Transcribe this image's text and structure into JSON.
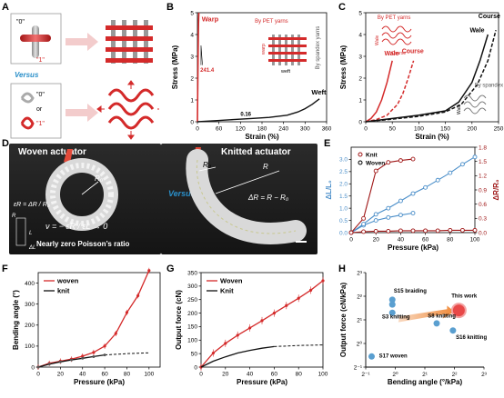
{
  "panels": {
    "A": {
      "label": "A",
      "bit0": "\"0\"",
      "bit1": "\"1\"",
      "versus": "Versus",
      "bit0b": "\"0\"",
      "or": "or",
      "bit1b": "\"1\""
    },
    "B": {
      "label": "B",
      "warp_label": "Warp",
      "weft_label": "Weft",
      "slope_warp": "241.4",
      "slope_weft": "0.16",
      "by_pet": "By PET yarns",
      "by_spandex": "By spandex yarns",
      "inset_warp": "warp",
      "inset_weft": "weft"
    },
    "C": {
      "label": "C",
      "by_pet": "By PET yarns",
      "by_spandex": "By spandex yarns",
      "wale1": "Wale",
      "course1": "Course",
      "wale2": "Wale",
      "course2": "Course",
      "inset_wale": "Wale",
      "inset_course": "Course",
      "inset_wale2": "Wale"
    },
    "D": {
      "label": "D",
      "woven_title": "Woven actuator",
      "knitted_title": "Knitted actuator",
      "versus": "Versus",
      "r0": "R₀",
      "r0b": "R₀",
      "r": "R",
      "delta_r": "ΔR = R − R₀",
      "eps_r": "εR = ΔR / R₀",
      "nu_eq": "ν = − εR / εL → 0",
      "poisson": "Nearly zero Poisson’s ratio",
      "L": "L",
      "dL": "ΔL",
      "R_small": "R"
    },
    "E": {
      "label": "E"
    },
    "F": {
      "label": "F"
    },
    "G": {
      "label": "G"
    },
    "H": {
      "label": "H",
      "s15": "S15 braiding",
      "s3": "S3 knitting",
      "s8": "S8 knitting",
      "this_work": "This work",
      "s16": "S16 knitting",
      "s17": "S17 woven"
    }
  },
  "colors": {
    "red": "#d42a2a",
    "darkred": "#a01818",
    "blue": "#4a8ec9",
    "gray": "#666666",
    "black": "#111111"
  },
  "chart_data": [
    {
      "id": "B",
      "type": "line",
      "xlabel": "Strain (%)",
      "ylabel": "Stress (MPa)",
      "xlim": [
        0,
        360
      ],
      "ylim": [
        0,
        5
      ],
      "xticks": [
        0,
        60,
        120,
        180,
        240,
        300,
        360
      ],
      "yticks": [
        0,
        1,
        2,
        3,
        4,
        5
      ],
      "ytick_labels": [
        "0",
        "1",
        "2",
        "3",
        "4",
        "5"
      ],
      "series": [
        {
          "name": "Warp",
          "x": [
            0,
            0.5,
            1,
            1.5,
            2,
            2.5,
            3,
            3.5,
            4
          ],
          "y": [
            0,
            0.8,
            1.6,
            2.4,
            3.2,
            3.9,
            4.5,
            4.8,
            5.0
          ]
        },
        {
          "name": "Weft",
          "x": [
            0,
            50,
            100,
            150,
            200,
            250,
            280,
            300,
            320,
            340
          ],
          "y": [
            0,
            0.05,
            0.1,
            0.15,
            0.2,
            0.3,
            0.45,
            0.6,
            0.8,
            1.05
          ]
        }
      ]
    },
    {
      "id": "C",
      "type": "line",
      "xlabel": "Strain (%)",
      "ylabel": "Stress (MPa)",
      "xlim": [
        0,
        250
      ],
      "ylim": [
        0,
        5
      ],
      "xticks": [
        0,
        50,
        100,
        150,
        200,
        250
      ],
      "yticks": [
        0,
        1,
        2,
        3,
        4,
        5
      ],
      "series": [
        {
          "name": "Wale (PET)",
          "style": "solid-red",
          "x": [
            0,
            10,
            20,
            30,
            40,
            45,
            50
          ],
          "y": [
            0,
            0.15,
            0.45,
            1.0,
            1.8,
            2.3,
            2.8
          ]
        },
        {
          "name": "Course (PET)",
          "style": "dashed-red",
          "x": [
            0,
            20,
            40,
            60,
            70,
            80,
            90
          ],
          "y": [
            0,
            0.1,
            0.3,
            0.8,
            1.3,
            2.0,
            2.8
          ]
        },
        {
          "name": "Wale (spandex)",
          "style": "solid-black",
          "x": [
            0,
            50,
            100,
            150,
            175,
            200,
            215,
            230
          ],
          "y": [
            0,
            0.15,
            0.3,
            0.5,
            0.9,
            1.8,
            2.8,
            4.0
          ]
        },
        {
          "name": "Course (spandex)",
          "style": "dashed-black",
          "x": [
            0,
            50,
            100,
            150,
            180,
            210,
            230,
            245
          ],
          "y": [
            0,
            0.12,
            0.25,
            0.45,
            0.8,
            1.7,
            2.8,
            4.2
          ]
        }
      ]
    },
    {
      "id": "E",
      "type": "line",
      "xlabel": "Pressure (kPa)",
      "ylabel": "ΔL/L₀",
      "ylabel_right": "ΔR/R₀",
      "xlim": [
        0,
        100
      ],
      "ylim": [
        0,
        3.5
      ],
      "ylim_right": [
        0,
        1.8
      ],
      "xticks": [
        0,
        20,
        40,
        60,
        80,
        100
      ],
      "yticks": [
        0,
        0.5,
        1.0,
        1.5,
        2.0,
        2.5,
        3.0
      ],
      "ytick_labels": [
        "0.0",
        "0.5",
        "1.0",
        "1.5",
        "2.0",
        "2.5",
        "3.0"
      ],
      "yticks_right": [
        0,
        0.3,
        0.6,
        0.9,
        1.2,
        1.5,
        1.8
      ],
      "ytick_labels_right": [
        "0.0",
        "0.3",
        "0.6",
        "0.9",
        "1.2",
        "1.5",
        "1.8"
      ],
      "legend": [
        "Knit",
        "Woven"
      ],
      "series": [
        {
          "name": "Knit",
          "axis": "left",
          "color": "blue",
          "x": [
            0,
            10,
            20,
            30,
            40,
            50
          ],
          "y": [
            0,
            0.3,
            0.5,
            0.62,
            0.72,
            0.8
          ]
        },
        {
          "name": "Woven",
          "axis": "left",
          "color": "blue",
          "x": [
            0,
            10,
            20,
            30,
            40,
            50,
            60,
            70,
            80,
            90,
            100
          ],
          "y": [
            0,
            0.35,
            0.75,
            1.0,
            1.3,
            1.6,
            1.85,
            2.15,
            2.45,
            2.8,
            3.1
          ]
        },
        {
          "name": "Knit",
          "axis": "right",
          "color": "darkred",
          "x": [
            0,
            10,
            20,
            30,
            40,
            50
          ],
          "y": [
            0,
            0.3,
            1.3,
            1.48,
            1.52,
            1.55
          ]
        },
        {
          "name": "Woven",
          "axis": "right",
          "color": "darkred",
          "x": [
            0,
            10,
            20,
            30,
            40,
            50,
            60,
            70,
            80,
            90,
            100
          ],
          "y": [
            0,
            0.02,
            0.03,
            0.03,
            0.04,
            0.04,
            0.04,
            0.04,
            0.05,
            0.05,
            0.05
          ]
        }
      ]
    },
    {
      "id": "F",
      "type": "line",
      "xlabel": "Pressure (kPa)",
      "ylabel": "Bending angle (°)",
      "xlim": [
        0,
        110
      ],
      "ylim": [
        0,
        450
      ],
      "xticks": [
        0,
        20,
        40,
        60,
        80,
        100
      ],
      "yticks": [
        0,
        100,
        200,
        300,
        400
      ],
      "legend": [
        "woven",
        "knit"
      ],
      "series": [
        {
          "name": "woven",
          "color": "red",
          "x": [
            0,
            10,
            20,
            30,
            40,
            50,
            60,
            70,
            80,
            90,
            100
          ],
          "y": [
            0,
            18,
            28,
            38,
            52,
            70,
            100,
            160,
            260,
            340,
            460
          ]
        },
        {
          "name": "knit",
          "color": "black",
          "x": [
            0,
            10,
            20,
            30,
            40,
            50,
            60
          ],
          "y": [
            0,
            14,
            25,
            34,
            42,
            50,
            58
          ],
          "x_ext": [
            60,
            70,
            80,
            90,
            100
          ],
          "y_ext": [
            58,
            61,
            64,
            66,
            68
          ]
        }
      ]
    },
    {
      "id": "G",
      "type": "line",
      "xlabel": "Pressure (kPa)",
      "ylabel": "Output force (cN)",
      "xlim": [
        0,
        100
      ],
      "ylim": [
        0,
        350
      ],
      "xticks": [
        0,
        20,
        40,
        60,
        80,
        100
      ],
      "yticks": [
        0,
        50,
        100,
        150,
        200,
        250,
        300,
        350
      ],
      "legend": [
        "Woven",
        "Knit"
      ],
      "series": [
        {
          "name": "Woven",
          "color": "red",
          "x": [
            0,
            10,
            20,
            30,
            40,
            50,
            60,
            70,
            80,
            90,
            100
          ],
          "y": [
            0,
            52,
            88,
            118,
            145,
            172,
            200,
            228,
            255,
            285,
            320
          ]
        },
        {
          "name": "Knit",
          "color": "black",
          "x": [
            0,
            10,
            20,
            30,
            40,
            50,
            60
          ],
          "y": [
            0,
            22,
            38,
            52,
            62,
            70,
            76
          ],
          "x_ext": [
            60,
            70,
            80,
            90,
            100
          ],
          "y_ext": [
            76,
            78,
            80,
            81,
            82
          ]
        }
      ]
    },
    {
      "id": "H",
      "type": "scatter",
      "xlabel": "Bending angle (°/kPa)",
      "ylabel": "Output force (cN/kPa)",
      "xlim_exp": [
        -1,
        3
      ],
      "ylim_exp": [
        -1,
        3
      ],
      "xticks": [
        "2⁻¹",
        "2⁰",
        "2¹",
        "2²",
        "2³"
      ],
      "yticks": [
        "2⁻¹",
        "2⁰",
        "2¹",
        "2²",
        "2³"
      ],
      "points": [
        {
          "name": "S15 braiding",
          "xe": -0.1,
          "ye": 1.85
        },
        {
          "name": "S15 braiding",
          "xe": -0.1,
          "ye": 1.65
        },
        {
          "name": "S3 knitting",
          "xe": -0.1,
          "ye": 1.3
        },
        {
          "name": "S8 knitting",
          "xe": 1.4,
          "ye": 0.85
        },
        {
          "name": "This work",
          "xe": 2.15,
          "ye": 1.4
        },
        {
          "name": "S16 knitting",
          "xe": 1.95,
          "ye": 0.55
        },
        {
          "name": "S17 woven",
          "xe": -0.8,
          "ye": -0.55
        }
      ]
    }
  ]
}
